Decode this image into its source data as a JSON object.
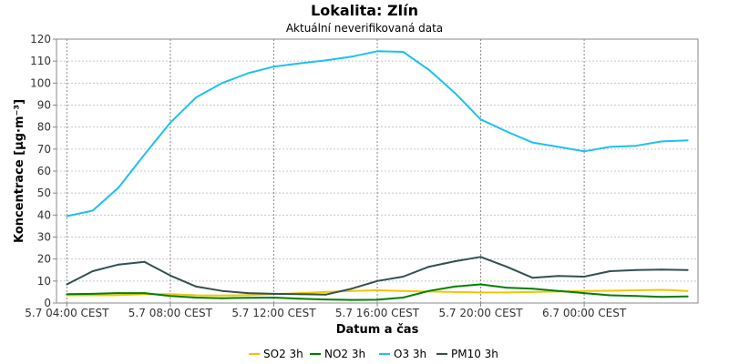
{
  "chart_data": {
    "type": "line",
    "title": "Lokalita: Zlín",
    "subtitle": "Aktuální neverifikovaná data",
    "xlabel": "Datum a čas",
    "ylabel": "Koncentrace [µg·m⁻³]",
    "ylim": [
      0,
      120
    ],
    "yticks": [
      0,
      10,
      20,
      30,
      40,
      50,
      60,
      70,
      80,
      90,
      100,
      110,
      120
    ],
    "xlim": [
      -0.4,
      24.4
    ],
    "xticks": [
      {
        "label": "5.7 04:00 CEST",
        "x": 0
      },
      {
        "label": "5.7 08:00 CEST",
        "x": 4
      },
      {
        "label": "5.7 12:00 CEST",
        "x": 8
      },
      {
        "label": "5.7 16:00 CEST",
        "x": 12
      },
      {
        "label": "5.7 20:00 CEST",
        "x": 16
      },
      {
        "label": "6.7 00:00 CEST",
        "x": 20
      }
    ],
    "grid": true,
    "legend_position": "bottom",
    "x": [
      0,
      1,
      2,
      3,
      4,
      5,
      6,
      7,
      8,
      9,
      10,
      11,
      12,
      13,
      14,
      15,
      16,
      17,
      18,
      19,
      20,
      21,
      22,
      23,
      24
    ],
    "series": [
      {
        "name": "SO2 3h",
        "color": "#f2c500",
        "values": [
          3.5,
          3.5,
          3.6,
          4.0,
          4.0,
          3.5,
          3.4,
          3.6,
          4.0,
          4.5,
          5.0,
          5.5,
          5.8,
          5.5,
          5.2,
          5.0,
          4.8,
          4.8,
          5.0,
          5.2,
          5.5,
          5.6,
          5.8,
          6.0,
          5.5
        ]
      },
      {
        "name": "NO2 3h",
        "color": "#008000",
        "values": [
          4.0,
          4.2,
          4.5,
          4.5,
          3.2,
          2.5,
          2.2,
          2.4,
          2.5,
          2.0,
          1.6,
          1.4,
          1.5,
          2.5,
          5.5,
          7.5,
          8.5,
          7.0,
          6.5,
          5.5,
          4.5,
          3.5,
          3.2,
          2.8,
          3.0
        ]
      },
      {
        "name": "O3 3h",
        "color": "#1ec0f0",
        "values": [
          39.5,
          42,
          52.5,
          67.5,
          82,
          93.5,
          100,
          104.5,
          107.5,
          109,
          110.3,
          112,
          114.5,
          114.2,
          106,
          95.5,
          83.5,
          78,
          73,
          71,
          69,
          71,
          71.5,
          73.5,
          74
        ]
      },
      {
        "name": "PM10 3h",
        "color": "#33504f",
        "values": [
          8.5,
          14.5,
          17.5,
          18.7,
          12.5,
          7.5,
          5.5,
          4.5,
          4.2,
          4.0,
          3.8,
          6.5,
          10.0,
          12.0,
          16.5,
          19.0,
          21.0,
          16.5,
          11.5,
          12.3,
          12.0,
          14.5,
          15.0,
          15.2,
          15.0
        ]
      }
    ]
  }
}
